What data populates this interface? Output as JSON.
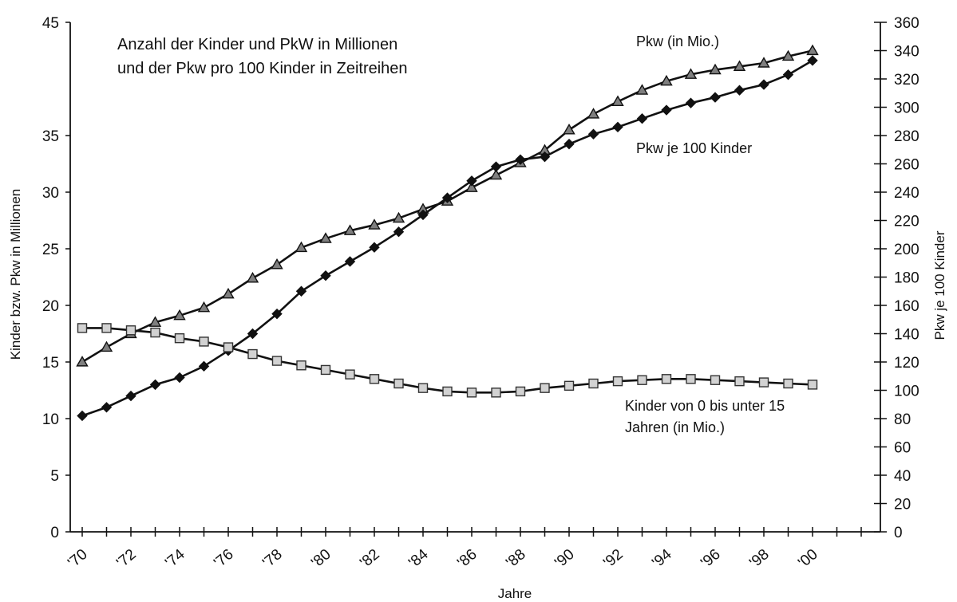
{
  "chart_data": {
    "type": "line",
    "title_lines": [
      "Anzahl der Kinder und PkW in Millionen",
      "und der Pkw pro 100 Kinder in Zeitreihen"
    ],
    "xlabel": "Jahre",
    "ylabel_left": "Kinder bzw. Pkw in Millionen",
    "ylabel_right": "Pkw je 100 Kinder",
    "x_tick_labels": [
      "'70",
      "'72",
      "'74",
      "'76",
      "'78",
      "'80",
      "'82",
      "'84",
      "'86",
      "'88",
      "'90",
      "'92",
      "'94",
      "'96",
      "'98",
      "'00"
    ],
    "x_range": [
      1970,
      2002
    ],
    "ylim_left": [
      0,
      45
    ],
    "yticks_left": [
      0,
      5,
      10,
      15,
      20,
      25,
      30,
      35,
      45
    ],
    "ylim_right": [
      0,
      360
    ],
    "yticks_right": [
      0,
      20,
      40,
      60,
      80,
      100,
      120,
      140,
      160,
      180,
      200,
      220,
      240,
      260,
      280,
      300,
      320,
      340,
      360
    ],
    "grid": false,
    "legend": "none",
    "x": [
      1970,
      1971,
      1972,
      1973,
      1974,
      1975,
      1976,
      1977,
      1978,
      1979,
      1980,
      1981,
      1982,
      1983,
      1984,
      1985,
      1986,
      1987,
      1988,
      1989,
      1990,
      1991,
      1992,
      1993,
      1994,
      1995,
      1996,
      1997,
      1998,
      1999,
      2000
    ],
    "series": [
      {
        "name": "Pkw (in Mio.)",
        "axis": "left",
        "marker": "triangle",
        "values": [
          15.0,
          16.3,
          17.5,
          18.5,
          19.1,
          19.8,
          21.0,
          22.4,
          23.6,
          25.1,
          25.9,
          26.6,
          27.1,
          27.7,
          28.5,
          29.2,
          30.4,
          31.5,
          32.6,
          33.7,
          35.5,
          36.9,
          38.0,
          39.0,
          39.8,
          40.4,
          40.8,
          41.1,
          41.4,
          42.0,
          42.5
        ]
      },
      {
        "name": "Pkw je 100 Kinder",
        "axis": "right",
        "marker": "diamond",
        "values": [
          82,
          88,
          96,
          104,
          109,
          117,
          128,
          140,
          154,
          170,
          181,
          191,
          201,
          212,
          224,
          236,
          248,
          258,
          263,
          265,
          274,
          281,
          286,
          292,
          298,
          303,
          307,
          312,
          316,
          323,
          333
        ]
      },
      {
        "name": "Kinder von 0 bis unter 15 Jahren (in Mio.)",
        "axis": "left",
        "marker": "square",
        "values": [
          18.0,
          18.0,
          17.8,
          17.6,
          17.1,
          16.8,
          16.3,
          15.7,
          15.1,
          14.7,
          14.3,
          13.9,
          13.5,
          13.1,
          12.7,
          12.4,
          12.3,
          12.3,
          12.4,
          12.7,
          12.9,
          13.1,
          13.3,
          13.4,
          13.5,
          13.5,
          13.4,
          13.3,
          13.2,
          13.1,
          13.0
        ]
      }
    ],
    "annotations": [
      {
        "text": "Pkw (in Mio.)",
        "series_index": 0
      },
      {
        "text": "Pkw je 100 Kinder",
        "series_index": 1
      },
      {
        "lines": [
          "Kinder von 0 bis unter 15",
          "Jahren (in Mio.)"
        ],
        "series_index": 2
      }
    ]
  }
}
